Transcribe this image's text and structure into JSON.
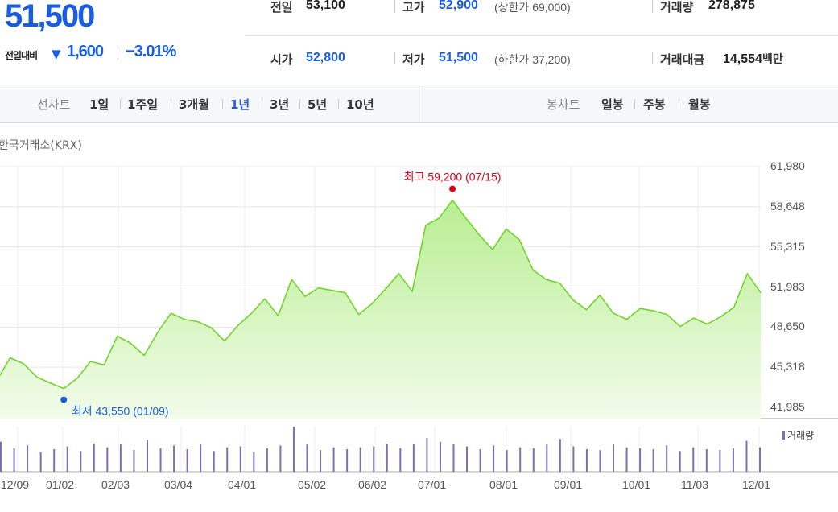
{
  "quote": {
    "price": "51,500",
    "change_label": "전일대비",
    "change_value": "1,600",
    "change_rate": "−3.01%",
    "direction": "down",
    "prev_close_label": "전일",
    "prev_close": "53,100",
    "high_label": "고가",
    "high": "52,900",
    "upper_limit": "(상한가 69,000)",
    "volume_label": "거래량",
    "volume": "278,875",
    "open_label": "시가",
    "open": "52,800",
    "low_label": "저가",
    "low": "51,500",
    "lower_limit": "(하한가 37,200)",
    "amount_label": "거래대금",
    "amount": "14,554",
    "amount_unit": "백만"
  },
  "toolbar": {
    "line_chart_label": "선차트",
    "periods": [
      "1일",
      "1주일",
      "3개월",
      "1년",
      "3년",
      "5년",
      "10년"
    ],
    "active_period": "1년",
    "candle_chart_label": "봉차트",
    "candles": [
      "일봉",
      "주봉",
      "월봉"
    ]
  },
  "exchange": "한국거래소(KRX)",
  "colors": {
    "down": "#1a5ee0",
    "up": "#e0001b",
    "line": "#72d42c",
    "volume": "#7d6fb2"
  },
  "chart_data": {
    "type": "area",
    "title": "",
    "ylim": [
      41985,
      61980
    ],
    "y_ticks": [
      "61,980",
      "58,648",
      "55,315",
      "51,983",
      "48,650",
      "45,318",
      "41,985"
    ],
    "x_ticks": [
      "12/09",
      "01/02",
      "02/03",
      "03/04",
      "04/01",
      "05/02",
      "06/02",
      "07/01",
      "08/01",
      "09/01",
      "10/01",
      "11/03",
      "12/01"
    ],
    "max_annotation": {
      "label": "최고",
      "value": "59,200",
      "date": "(07/15)"
    },
    "min_annotation": {
      "label": "최저",
      "value": "43,550",
      "date": "(01/09)"
    },
    "series": [
      {
        "type": "line",
        "x": [
          "12/09",
          "12/16",
          "12/23",
          "12/30",
          "01/06",
          "01/09",
          "01/13",
          "01/20",
          "01/27",
          "02/03",
          "02/10",
          "02/17",
          "02/24",
          "03/04",
          "03/11",
          "03/18",
          "03/25",
          "04/01",
          "04/08",
          "04/15",
          "04/22",
          "04/29",
          "05/02",
          "05/09",
          "05/16",
          "05/23",
          "05/30",
          "06/02",
          "06/09",
          "06/16",
          "06/23",
          "06/30",
          "07/01",
          "07/08",
          "07/15",
          "07/22",
          "07/29",
          "08/01",
          "08/08",
          "08/15",
          "08/22",
          "08/29",
          "09/01",
          "09/08",
          "09/15",
          "09/22",
          "09/29",
          "10/01",
          "10/08",
          "10/15",
          "10/22",
          "10/29",
          "11/03",
          "11/10",
          "11/17",
          "11/24",
          "12/01",
          "12/05"
        ],
        "values": [
          44200,
          46100,
          45600,
          44500,
          44000,
          43550,
          44400,
          45800,
          45500,
          47900,
          47300,
          46300,
          48200,
          49800,
          49300,
          49100,
          48600,
          47500,
          48800,
          49800,
          51000,
          49600,
          52600,
          51200,
          51900,
          51700,
          51500,
          49700,
          50600,
          51800,
          53100,
          51600,
          57100,
          57700,
          59200,
          57700,
          56300,
          55100,
          56800,
          55900,
          53400,
          52600,
          52300,
          50900,
          50100,
          51300,
          49800,
          49300,
          50200,
          50000,
          49700,
          48700,
          49400,
          48900,
          49500,
          50300,
          53100,
          51500
        ]
      },
      {
        "type": "bar",
        "name": "거래량",
        "values": [
          3.2,
          2.5,
          2.8,
          2.1,
          2.4,
          2.7,
          2.2,
          3.0,
          2.6,
          2.9,
          2.3,
          3.4,
          2.5,
          2.8,
          2.4,
          2.9,
          2.2,
          2.6,
          2.7,
          2.1,
          2.5,
          2.8,
          4.8,
          2.9,
          2.3,
          2.6,
          2.4,
          2.6,
          2.7,
          3.0,
          2.5,
          2.9,
          3.6,
          3.2,
          2.9,
          2.7,
          2.4,
          2.8,
          2.3,
          2.6,
          2.5,
          2.9,
          3.5,
          2.7,
          2.4,
          2.3,
          2.9,
          2.6,
          2.5,
          2.4,
          2.8,
          2.2,
          2.6,
          2.4,
          2.3,
          2.5,
          3.3,
          2.6
        ]
      }
    ]
  }
}
